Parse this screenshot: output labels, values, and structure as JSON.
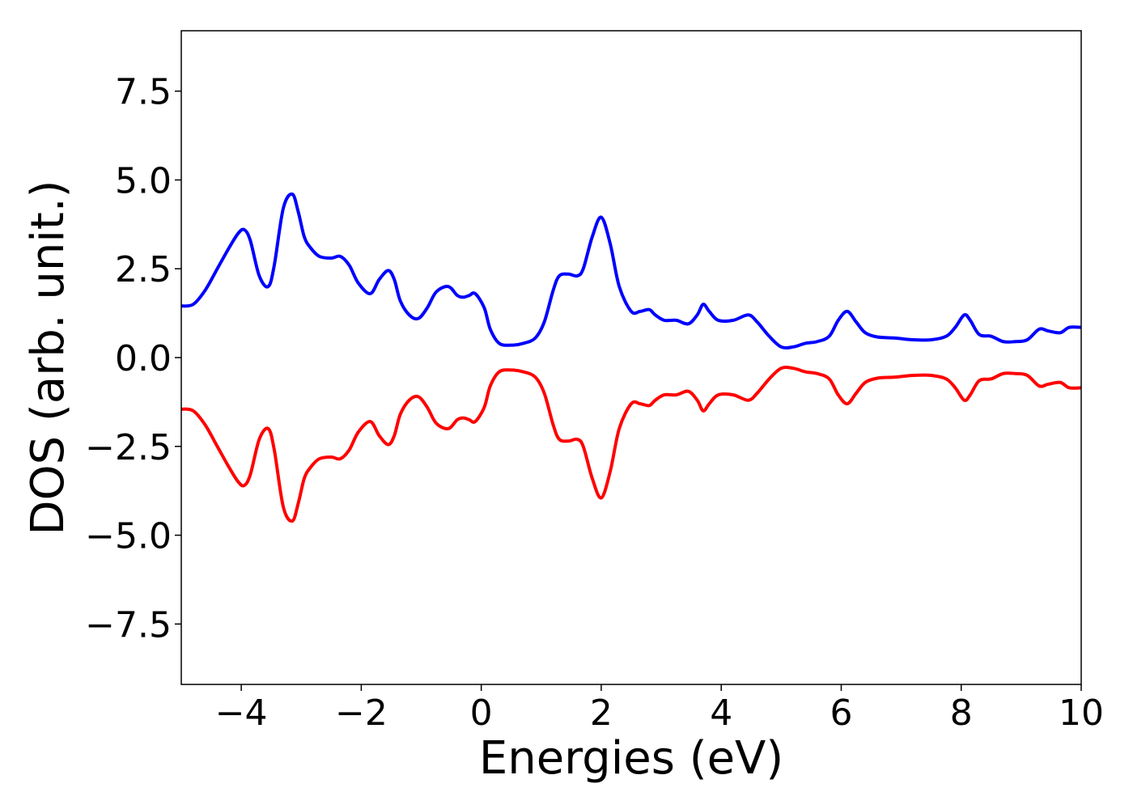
{
  "chart_data": {
    "type": "line",
    "title": "",
    "xlabel": "Energies (eV)",
    "ylabel": "DOS (arb. unit.)",
    "xlim": [
      -5,
      10
    ],
    "ylim": [
      -9.2,
      9.2
    ],
    "xticks": [
      -4,
      -2,
      0,
      2,
      4,
      6,
      8,
      10
    ],
    "xtick_labels": [
      "−4",
      "−2",
      "0",
      "2",
      "4",
      "6",
      "8",
      "10"
    ],
    "yticks": [
      -7.5,
      -5.0,
      -2.5,
      0.0,
      2.5,
      5.0,
      7.5
    ],
    "ytick_labels": [
      "−7.5",
      "−5.0",
      "−2.5",
      "0.0",
      "2.5",
      "5.0",
      "7.5"
    ],
    "grid": false,
    "legend": "none",
    "series": [
      {
        "color": "#0000ff",
        "x": [
          -5.0,
          -4.8,
          -4.6,
          -4.4,
          -4.2,
          -4.05,
          -3.95,
          -3.85,
          -3.7,
          -3.55,
          -3.45,
          -3.3,
          -3.15,
          -3.05,
          -2.95,
          -2.85,
          -2.7,
          -2.5,
          -2.35,
          -2.2,
          -2.05,
          -1.85,
          -1.7,
          -1.55,
          -1.45,
          -1.35,
          -1.2,
          -1.05,
          -0.9,
          -0.75,
          -0.55,
          -0.4,
          -0.3,
          -0.2,
          -0.1,
          0.05,
          0.15,
          0.3,
          0.5,
          0.7,
          0.9,
          1.05,
          1.2,
          1.3,
          1.45,
          1.6,
          1.7,
          1.85,
          2.0,
          2.15,
          2.3,
          2.5,
          2.65,
          2.8,
          2.9,
          3.05,
          3.25,
          3.45,
          3.6,
          3.7,
          3.8,
          3.95,
          4.2,
          4.45,
          4.6,
          4.8,
          5.0,
          5.2,
          5.4,
          5.6,
          5.8,
          5.95,
          6.1,
          6.25,
          6.4,
          6.6,
          6.9,
          7.2,
          7.5,
          7.75,
          7.9,
          8.05,
          8.15,
          8.3,
          8.5,
          8.7,
          8.9,
          9.1,
          9.3,
          9.45,
          9.65,
          9.8,
          10.0
        ],
        "values": [
          1.45,
          1.5,
          1.9,
          2.5,
          3.1,
          3.5,
          3.6,
          3.3,
          2.3,
          2.0,
          2.6,
          4.2,
          4.6,
          4.1,
          3.4,
          3.1,
          2.85,
          2.8,
          2.85,
          2.6,
          2.1,
          1.8,
          2.2,
          2.45,
          2.2,
          1.6,
          1.2,
          1.1,
          1.4,
          1.85,
          2.0,
          1.75,
          1.7,
          1.75,
          1.8,
          1.4,
          0.8,
          0.4,
          0.35,
          0.4,
          0.55,
          1.0,
          1.9,
          2.3,
          2.35,
          2.3,
          2.5,
          3.4,
          3.95,
          3.2,
          2.0,
          1.3,
          1.3,
          1.35,
          1.2,
          1.05,
          1.05,
          0.95,
          1.2,
          1.5,
          1.3,
          1.05,
          1.05,
          1.2,
          1.0,
          0.6,
          0.3,
          0.3,
          0.4,
          0.45,
          0.6,
          1.05,
          1.3,
          1.0,
          0.7,
          0.58,
          0.55,
          0.5,
          0.5,
          0.6,
          0.85,
          1.2,
          1.05,
          0.65,
          0.6,
          0.45,
          0.45,
          0.5,
          0.8,
          0.75,
          0.7,
          0.85,
          0.85
        ]
      },
      {
        "color": "#ff0000",
        "x": [
          -5.0,
          -4.8,
          -4.6,
          -4.4,
          -4.2,
          -4.05,
          -3.95,
          -3.85,
          -3.7,
          -3.55,
          -3.45,
          -3.3,
          -3.15,
          -3.05,
          -2.95,
          -2.85,
          -2.7,
          -2.5,
          -2.35,
          -2.2,
          -2.05,
          -1.85,
          -1.7,
          -1.55,
          -1.45,
          -1.35,
          -1.2,
          -1.05,
          -0.9,
          -0.75,
          -0.55,
          -0.4,
          -0.3,
          -0.2,
          -0.1,
          0.05,
          0.15,
          0.3,
          0.5,
          0.7,
          0.9,
          1.05,
          1.2,
          1.3,
          1.45,
          1.6,
          1.7,
          1.85,
          2.0,
          2.15,
          2.3,
          2.5,
          2.65,
          2.8,
          2.9,
          3.05,
          3.25,
          3.45,
          3.6,
          3.7,
          3.8,
          3.95,
          4.2,
          4.45,
          4.6,
          4.8,
          5.0,
          5.2,
          5.4,
          5.6,
          5.8,
          5.95,
          6.1,
          6.25,
          6.4,
          6.6,
          6.9,
          7.2,
          7.5,
          7.75,
          7.9,
          8.05,
          8.15,
          8.3,
          8.5,
          8.7,
          8.9,
          9.1,
          9.3,
          9.45,
          9.65,
          9.8,
          10.0
        ],
        "values": [
          -1.45,
          -1.5,
          -1.9,
          -2.5,
          -3.1,
          -3.5,
          -3.6,
          -3.3,
          -2.3,
          -2.0,
          -2.6,
          -4.2,
          -4.6,
          -4.1,
          -3.4,
          -3.1,
          -2.85,
          -2.8,
          -2.85,
          -2.6,
          -2.1,
          -1.8,
          -2.2,
          -2.45,
          -2.2,
          -1.6,
          -1.2,
          -1.1,
          -1.4,
          -1.85,
          -2.0,
          -1.75,
          -1.7,
          -1.75,
          -1.8,
          -1.4,
          -0.8,
          -0.4,
          -0.35,
          -0.4,
          -0.55,
          -1.0,
          -1.9,
          -2.3,
          -2.35,
          -2.3,
          -2.5,
          -3.4,
          -3.95,
          -3.2,
          -2.0,
          -1.3,
          -1.3,
          -1.35,
          -1.2,
          -1.05,
          -1.05,
          -0.95,
          -1.2,
          -1.5,
          -1.3,
          -1.05,
          -1.05,
          -1.2,
          -1.0,
          -0.6,
          -0.3,
          -0.3,
          -0.4,
          -0.45,
          -0.6,
          -1.05,
          -1.3,
          -1.0,
          -0.7,
          -0.58,
          -0.55,
          -0.5,
          -0.5,
          -0.6,
          -0.85,
          -1.2,
          -1.05,
          -0.65,
          -0.6,
          -0.45,
          -0.45,
          -0.5,
          -0.8,
          -0.75,
          -0.7,
          -0.85,
          -0.85
        ]
      }
    ]
  }
}
